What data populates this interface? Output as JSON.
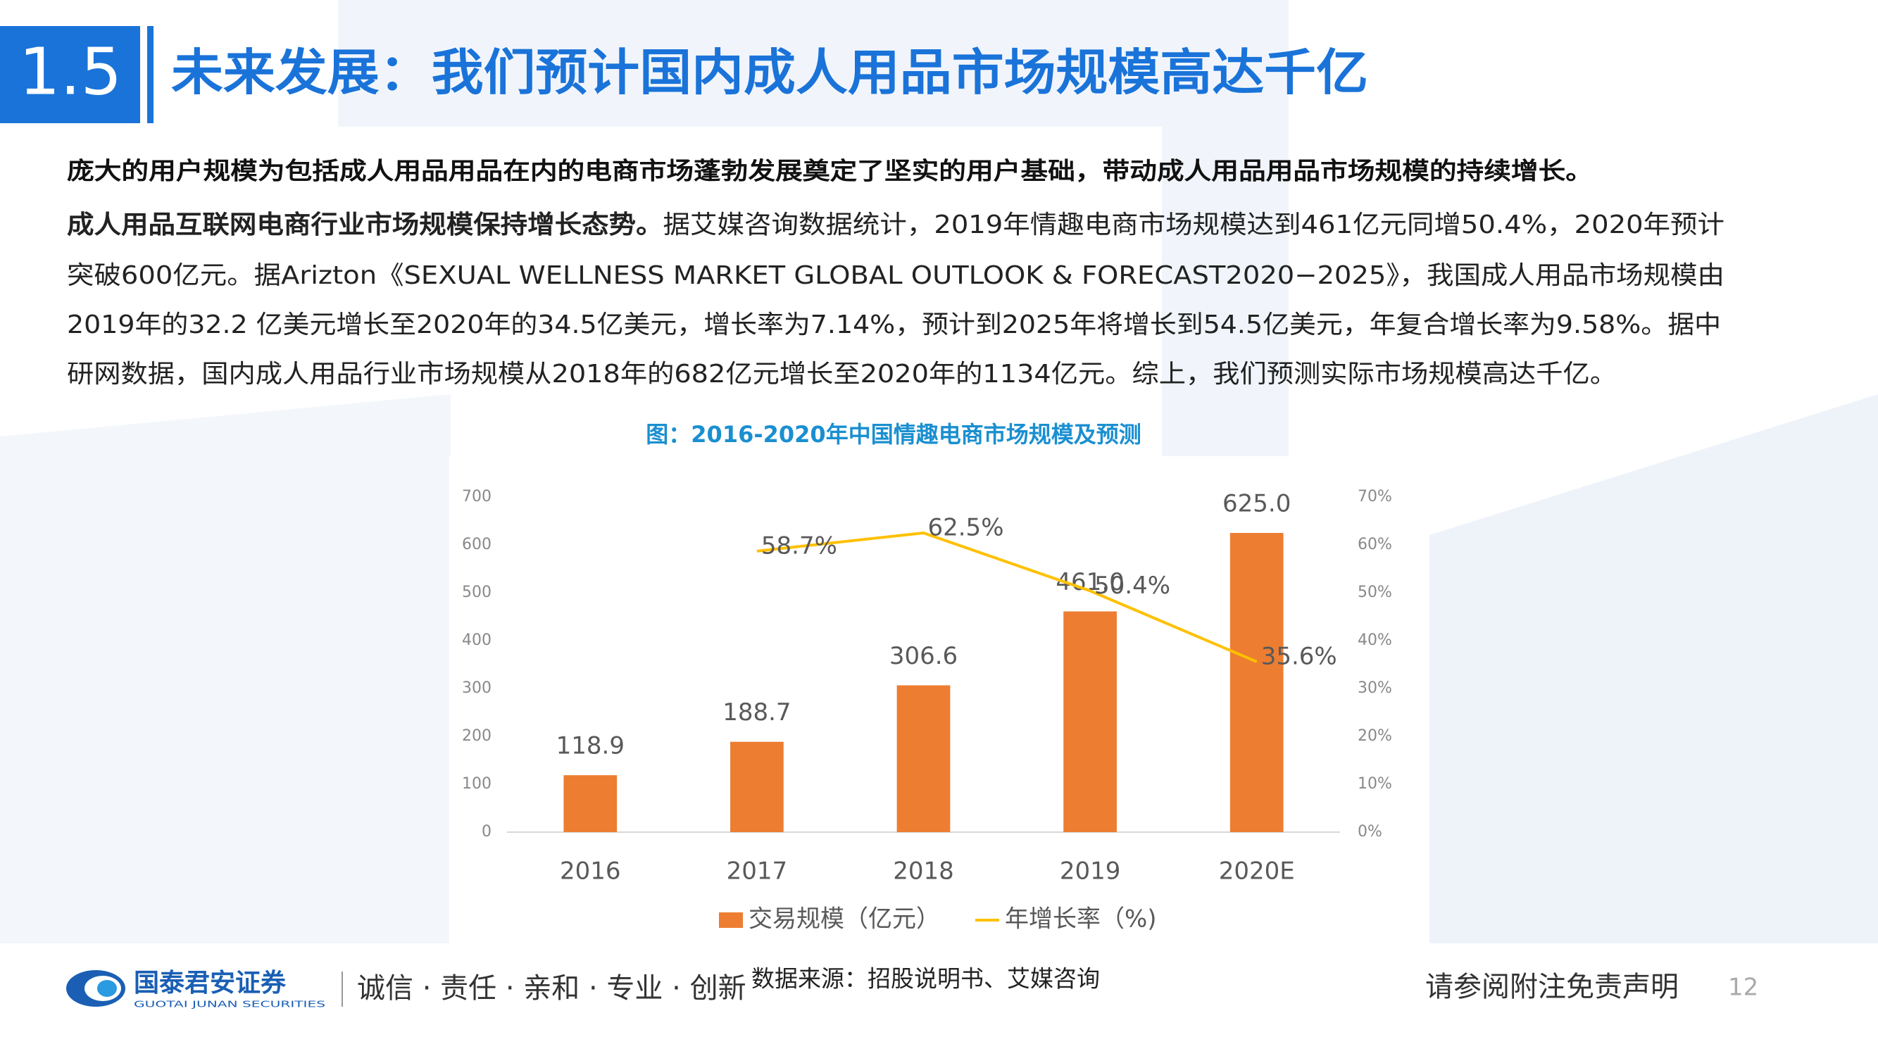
{
  "header": {
    "number": "1.5",
    "title": "未来发展：我们预计国内成人用品市场规模高达千亿"
  },
  "body": {
    "summary": "庞大的用户规模为包括成人用品用品在内的电商市场蓬勃发展奠定了坚实的用户基础，带动成人用品用品市场规模的持续增长。",
    "lead": "成人用品互联网电商行业市场规模保持增长态势。",
    "lines": [
      "据艾媒咨询数据统计，2019年情趣电商市场规模达到461亿元同增50.4%，2020年预计",
      "突破600亿元。据Arizton《SEXUAL WELLNESS MARKET GLOBAL OUTLOOK & FORECAST2020−2025》，我国成人用品市场规模由",
      "2019年的32.2 亿美元增长至2020年的34.5亿美元，增长率为7.14%，预计到2025年将增长到54.5亿美元，年复合增长率为9.58%。据中",
      "研网数据，国内成人用品行业市场规模从2018年的682亿元增长至2020年的1134亿元。综上，我们预测实际市场规模高达千亿。"
    ]
  },
  "chart_data": {
    "type": "bar",
    "title": "图：2016-2020年中国情趣电商市场规模及预测",
    "categories": [
      "2016",
      "2017",
      "2018",
      "2019",
      "2020E"
    ],
    "series": [
      {
        "name": "交易规模（亿元）",
        "color": "#ed7d31",
        "type": "bar",
        "values": [
          118.9,
          188.7,
          306.6,
          461.0,
          625.0
        ],
        "value_labels": [
          "118.9",
          "188.7",
          "306.6",
          "461.0",
          "625.0"
        ]
      },
      {
        "name": "年增长率（%)",
        "color": "#ffc000",
        "type": "line",
        "axis": "y2",
        "values": [
          null,
          58.7,
          62.5,
          50.4,
          35.6
        ],
        "value_labels": [
          null,
          "58.7%",
          "62.5%",
          "50.4%",
          "35.6%"
        ]
      }
    ],
    "ylim": [
      0,
      700
    ],
    "yticks": [
      0,
      100,
      200,
      300,
      400,
      500,
      600,
      700
    ],
    "y2lim": [
      0,
      70
    ],
    "y2ticks": [
      {
        "value": 0,
        "label": "0%"
      },
      {
        "value": 10,
        "label": "10%"
      },
      {
        "value": 20,
        "label": "20%"
      },
      {
        "value": 30,
        "label": "30%"
      },
      {
        "value": 40,
        "label": "40%"
      },
      {
        "value": 50,
        "label": "50%"
      },
      {
        "value": 60,
        "label": "60%"
      },
      {
        "value": 70,
        "label": "70%"
      }
    ],
    "grid": false,
    "legend": "bottom",
    "source": "数据来源：招股说明书、艾媒咨询"
  },
  "footer": {
    "brand": "国泰君安证券",
    "brand_en": "GUOTAI JUNAN SECURITIES",
    "motto": "诚信 · 责任 · 亲和 · 专业 · 创新",
    "disclaimer": "请参阅附注免责声明",
    "page": "12"
  }
}
